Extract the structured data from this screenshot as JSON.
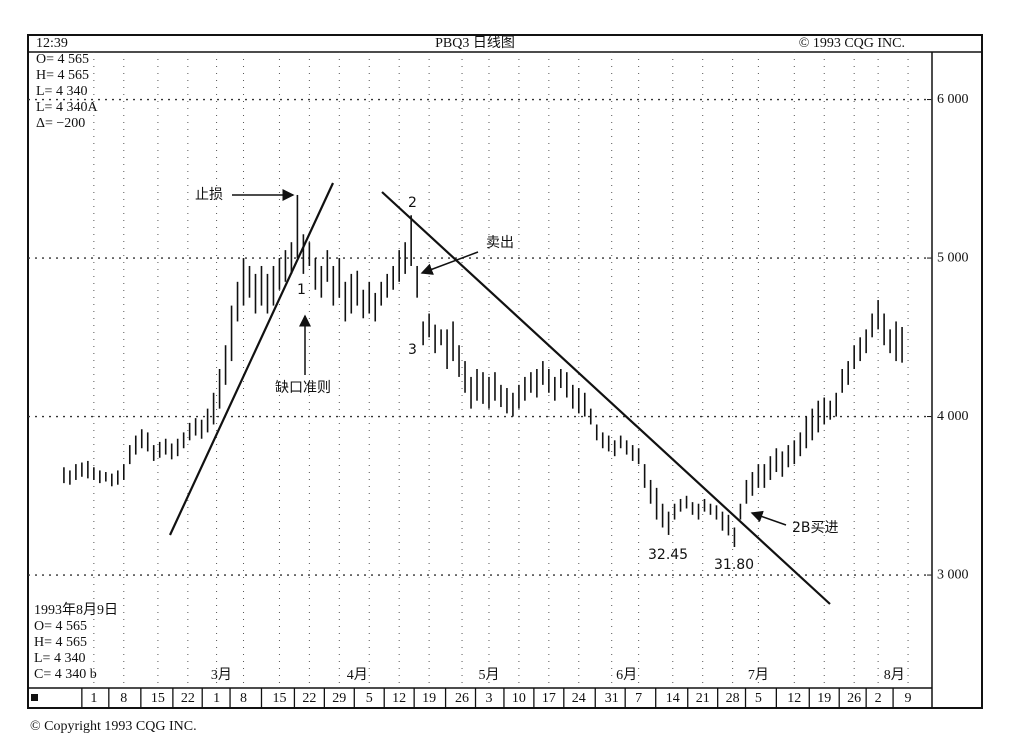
{
  "chart_data": {
    "type": "ohlc",
    "header": {
      "time": "12:39",
      "title": "PBQ3 日线图",
      "copyright": "© 1993 CQG INC."
    },
    "info_top": [
      "O= 4 565",
      "H= 4 565",
      "L= 4 340",
      "L= 4 340A",
      "Δ=  −200"
    ],
    "info_bottom": [
      "1993年8月9日",
      "O= 4 565",
      "H= 4 565",
      "L= 4 340",
      "C= 4 340 b"
    ],
    "footer": "© Copyright 1993 CQG INC.",
    "annotations": [
      "止损",
      "1",
      "缺口准则",
      "2",
      "卖出",
      "3",
      "32.45",
      "31.80",
      "2B买进"
    ],
    "ylim": [
      2300,
      6300
    ],
    "yticks": [
      {
        "value": 3000,
        "label": "3 000"
      },
      {
        "value": 4000,
        "label": "4 000"
      },
      {
        "value": 5000,
        "label": "5 000"
      },
      {
        "value": 6000,
        "label": "6 000"
      }
    ],
    "xlim": [
      -6,
      145
    ],
    "xticks": [
      {
        "value": 5,
        "label": "1"
      },
      {
        "value": 10,
        "label": "8"
      },
      {
        "value": 15.7,
        "label": "15"
      },
      {
        "value": 20.7,
        "label": "22"
      },
      {
        "value": 25.5,
        "label": "1"
      },
      {
        "value": 30,
        "label": "8"
      },
      {
        "value": 36,
        "label": "15"
      },
      {
        "value": 41,
        "label": "22"
      },
      {
        "value": 46,
        "label": "29"
      },
      {
        "value": 51,
        "label": "5"
      },
      {
        "value": 56,
        "label": "12"
      },
      {
        "value": 61,
        "label": "19"
      },
      {
        "value": 66.5,
        "label": "26"
      },
      {
        "value": 71,
        "label": "3"
      },
      {
        "value": 76,
        "label": "10"
      },
      {
        "value": 81,
        "label": "17"
      },
      {
        "value": 86,
        "label": "24"
      },
      {
        "value": 91.5,
        "label": "31"
      },
      {
        "value": 96,
        "label": "7"
      },
      {
        "value": 101.7,
        "label": "14"
      },
      {
        "value": 106.7,
        "label": "21"
      },
      {
        "value": 111.7,
        "label": "28"
      },
      {
        "value": 116,
        "label": "5"
      },
      {
        "value": 122,
        "label": "12"
      },
      {
        "value": 127,
        "label": "19"
      },
      {
        "value": 132,
        "label": "26"
      },
      {
        "value": 136,
        "label": "2"
      },
      {
        "value": 141,
        "label": "9"
      }
    ],
    "month_ticks": [
      {
        "value": 26.3,
        "label": "3月"
      },
      {
        "value": 49,
        "label": "4月"
      },
      {
        "value": 71,
        "label": "5月"
      },
      {
        "value": 94,
        "label": "6月"
      },
      {
        "value": 116,
        "label": "7月"
      },
      {
        "value": 138.7,
        "label": "8月"
      }
    ],
    "grid": true,
    "color": "#111111",
    "x": [
      0,
      1,
      2,
      3,
      4,
      5,
      6,
      7,
      8,
      9,
      10,
      11,
      12,
      13,
      14,
      15,
      16,
      17,
      18,
      19,
      20,
      21,
      22,
      23,
      24,
      25,
      26,
      27,
      28,
      29,
      30,
      31,
      32,
      33,
      34,
      35,
      36,
      37,
      38,
      39,
      40,
      41,
      42,
      43,
      44,
      45,
      46,
      47,
      48,
      49,
      50,
      51,
      52,
      53,
      54,
      55,
      56,
      57,
      58,
      59,
      60,
      61,
      62,
      63,
      64,
      65,
      66,
      67,
      68,
      69,
      70,
      71,
      72,
      73,
      74,
      75,
      76,
      77,
      78,
      79,
      80,
      81,
      82,
      83,
      84,
      85,
      86,
      87,
      88,
      89,
      90,
      91,
      92,
      93,
      94,
      95,
      96,
      97,
      98,
      99,
      100,
      101,
      102,
      103,
      104,
      105,
      106,
      107,
      108,
      109,
      110,
      111,
      112,
      113,
      114,
      115,
      116,
      117,
      118,
      119,
      120,
      121,
      122,
      123,
      124,
      125,
      126,
      127,
      128,
      129,
      130,
      131,
      132,
      133,
      134,
      135,
      136,
      137,
      138,
      139,
      140
    ],
    "high": [
      3680,
      3660,
      3700,
      3710,
      3720,
      3680,
      3660,
      3650,
      3640,
      3660,
      3700,
      3820,
      3880,
      3920,
      3900,
      3820,
      3840,
      3860,
      3830,
      3860,
      3900,
      3960,
      3990,
      3980,
      4050,
      4150,
      4300,
      4450,
      4700,
      4850,
      5000,
      4950,
      4900,
      4950,
      4900,
      4950,
      5000,
      5050,
      5100,
      5398,
      5150,
      5100,
      5000,
      4950,
      5050,
      4950,
      5000,
      4850,
      4900,
      4920,
      4800,
      4850,
      4780,
      4850,
      4900,
      4950,
      5050,
      5100,
      5270,
      4950,
      4600,
      4650,
      4580,
      4550,
      4550,
      4600,
      4450,
      4350,
      4250,
      4300,
      4280,
      4250,
      4280,
      4200,
      4180,
      4150,
      4200,
      4250,
      4280,
      4300,
      4350,
      4300,
      4250,
      4300,
      4280,
      4200,
      4180,
      4150,
      4050,
      3950,
      3900,
      3880,
      3850,
      3880,
      3850,
      3820,
      3800,
      3700,
      3600,
      3550,
      3450,
      3400,
      3450,
      3480,
      3500,
      3460,
      3450,
      3480,
      3450,
      3440,
      3400,
      3380,
      3300,
      3450,
      3600,
      3650,
      3700,
      3700,
      3750,
      3800,
      3780,
      3820,
      3850,
      3900,
      4000,
      4050,
      4100,
      4120,
      4100,
      4150,
      4300,
      4350,
      4450,
      4500,
      4550,
      4650,
      4735,
      4650,
      4550,
      4600,
      4565
    ],
    "low": [
      3580,
      3570,
      3600,
      3620,
      3610,
      3600,
      3580,
      3590,
      3560,
      3570,
      3600,
      3700,
      3760,
      3800,
      3780,
      3720,
      3740,
      3760,
      3730,
      3750,
      3800,
      3850,
      3880,
      3860,
      3900,
      3950,
      4050,
      4200,
      4350,
      4600,
      4700,
      4750,
      4650,
      4700,
      4650,
      4700,
      4800,
      4850,
      4900,
      5000,
      4900,
      4950,
      4800,
      4750,
      4850,
      4700,
      4750,
      4600,
      4650,
      4700,
      4620,
      4650,
      4600,
      4700,
      4750,
      4800,
      4850,
      4900,
      4950,
      4750,
      4450,
      4500,
      4400,
      4450,
      4300,
      4350,
      4250,
      4150,
      4050,
      4100,
      4080,
      4050,
      4100,
      4060,
      4020,
      4000,
      4050,
      4100,
      4150,
      4120,
      4200,
      4150,
      4100,
      4180,
      4120,
      4050,
      4020,
      4000,
      3950,
      3850,
      3800,
      3780,
      3750,
      3800,
      3760,
      3720,
      3700,
      3550,
      3450,
      3350,
      3300,
      3253,
      3350,
      3400,
      3420,
      3380,
      3350,
      3400,
      3380,
      3350,
      3280,
      3250,
      3177,
      3350,
      3450,
      3500,
      3550,
      3550,
      3600,
      3650,
      3620,
      3680,
      3700,
      3750,
      3800,
      3850,
      3900,
      3950,
      3980,
      4000,
      4150,
      4200,
      4300,
      4350,
      4400,
      4500,
      4550,
      4450,
      4400,
      4350,
      4340
    ]
  }
}
